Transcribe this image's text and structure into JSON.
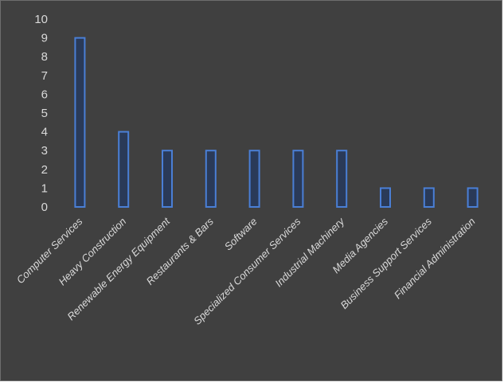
{
  "chart_data": {
    "type": "bar",
    "categories": [
      "Computer Services",
      "Heavy Construction",
      "Renewable Energy Equipment",
      "Restaurants & Bars",
      "Software",
      "Specialized Consumer Services",
      "Industrial Machinery",
      "Media Agencies",
      "Business Support Services",
      "Financial Administration"
    ],
    "values": [
      9,
      4,
      3,
      3,
      3,
      3,
      3,
      1,
      1,
      1
    ],
    "ylim": [
      0,
      10
    ],
    "yticks": [
      "0",
      "1",
      "2",
      "3",
      "4",
      "5",
      "6",
      "7",
      "8",
      "9",
      "10"
    ],
    "title": "",
    "xlabel": "",
    "ylabel": "",
    "grid": false,
    "legend": "none",
    "colors": {
      "background": "#404040",
      "bar_fill": "#2a3a58",
      "bar_edge": "#4a7fd6",
      "text": "#d9d9d9"
    }
  }
}
